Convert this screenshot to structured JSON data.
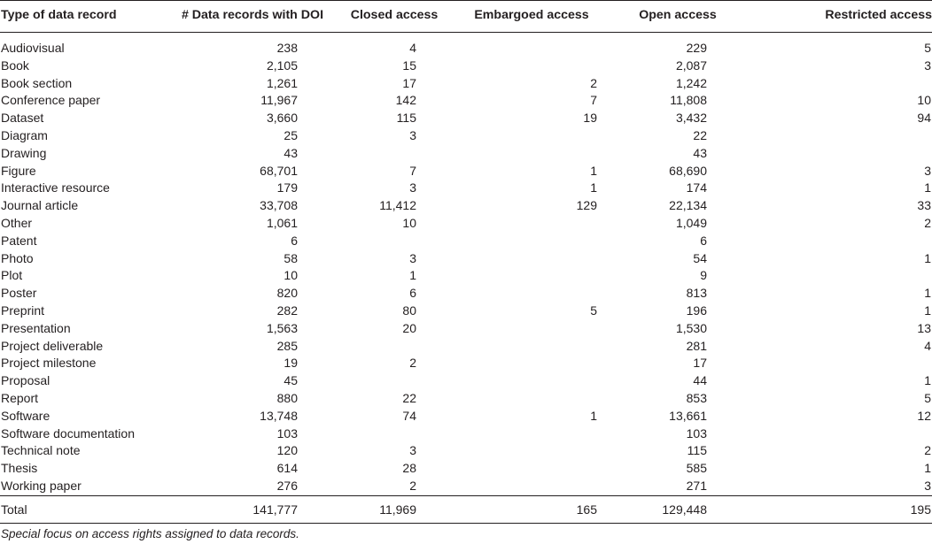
{
  "headers": [
    "Type of data record",
    "# Data records with DOI",
    "Closed access",
    "Embargoed access",
    "Open access",
    "Restricted access"
  ],
  "rows": [
    [
      "Audiovisual",
      "238",
      "4",
      "",
      "229",
      "5"
    ],
    [
      "Book",
      "2,105",
      "15",
      "",
      "2,087",
      "3"
    ],
    [
      "Book section",
      "1,261",
      "17",
      "2",
      "1,242",
      ""
    ],
    [
      "Conference paper",
      "11,967",
      "142",
      "7",
      "11,808",
      "10"
    ],
    [
      "Dataset",
      "3,660",
      "115",
      "19",
      "3,432",
      "94"
    ],
    [
      "Diagram",
      "25",
      "3",
      "",
      "22",
      ""
    ],
    [
      "Drawing",
      "43",
      "",
      "",
      "43",
      ""
    ],
    [
      "Figure",
      "68,701",
      "7",
      "1",
      "68,690",
      "3"
    ],
    [
      "Interactive resource",
      "179",
      "3",
      "1",
      "174",
      "1"
    ],
    [
      "Journal article",
      "33,708",
      "11,412",
      "129",
      "22,134",
      "33"
    ],
    [
      "Other",
      "1,061",
      "10",
      "",
      "1,049",
      "2"
    ],
    [
      "Patent",
      "6",
      "",
      "",
      "6",
      ""
    ],
    [
      "Photo",
      "58",
      "3",
      "",
      "54",
      "1"
    ],
    [
      "Plot",
      "10",
      "1",
      "",
      "9",
      ""
    ],
    [
      "Poster",
      "820",
      "6",
      "",
      "813",
      "1"
    ],
    [
      "Preprint",
      "282",
      "80",
      "5",
      "196",
      "1"
    ],
    [
      "Presentation",
      "1,563",
      "20",
      "",
      "1,530",
      "13"
    ],
    [
      "Project deliverable",
      "285",
      "",
      "",
      "281",
      "4"
    ],
    [
      "Project milestone",
      "19",
      "2",
      "",
      "17",
      ""
    ],
    [
      "Proposal",
      "45",
      "",
      "",
      "44",
      "1"
    ],
    [
      "Report",
      "880",
      "22",
      "",
      "853",
      "5"
    ],
    [
      "Software",
      "13,748",
      "74",
      "1",
      "13,661",
      "12"
    ],
    [
      "Software documentation",
      "103",
      "",
      "",
      "103",
      ""
    ],
    [
      "Technical note",
      "120",
      "3",
      "",
      "115",
      "2"
    ],
    [
      "Thesis",
      "614",
      "28",
      "",
      "585",
      "1"
    ],
    [
      "Working paper",
      "276",
      "2",
      "",
      "271",
      "3"
    ]
  ],
  "total": [
    "Total",
    "141,777",
    "11,969",
    "165",
    "129,448",
    "195"
  ],
  "caption": "Special focus on access rights assigned to data records."
}
